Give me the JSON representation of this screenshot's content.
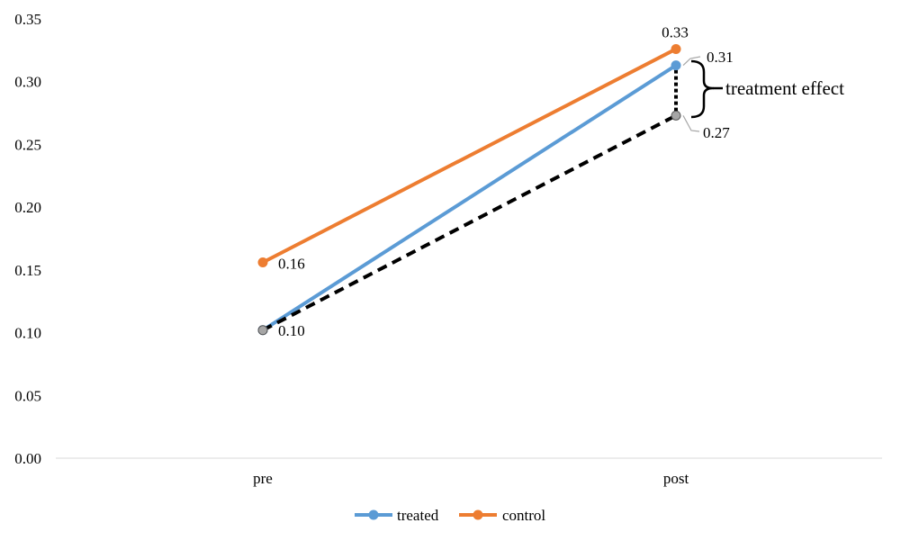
{
  "chart_data": {
    "type": "line",
    "title": "",
    "xlabel": "",
    "ylabel": "",
    "categories": [
      "pre",
      "post"
    ],
    "ylim": [
      0,
      0.35
    ],
    "yticks": [
      0.0,
      0.05,
      0.1,
      0.15,
      0.2,
      0.25,
      0.3,
      0.35
    ],
    "ytick_labels": [
      "0.00",
      "0.05",
      "0.10",
      "0.15",
      "0.20",
      "0.25",
      "0.30",
      "0.35"
    ],
    "grid": false,
    "legend_position": "bottom",
    "series": [
      {
        "name": "treated",
        "values": [
          0.102,
          0.313
        ],
        "labels": [
          "0.10",
          "0.31"
        ],
        "color": "#5B9BD5"
      },
      {
        "name": "control",
        "values": [
          0.156,
          0.326
        ],
        "labels": [
          "0.16",
          "0.33"
        ],
        "color": "#ED7D31"
      }
    ],
    "counterfactual": {
      "values": [
        0.102,
        0.273
      ],
      "labels": [
        "0.10",
        "0.27"
      ],
      "color": "#000000",
      "marker_color": "#A6A6A6"
    },
    "annotation": {
      "text": "treatment effect"
    }
  }
}
